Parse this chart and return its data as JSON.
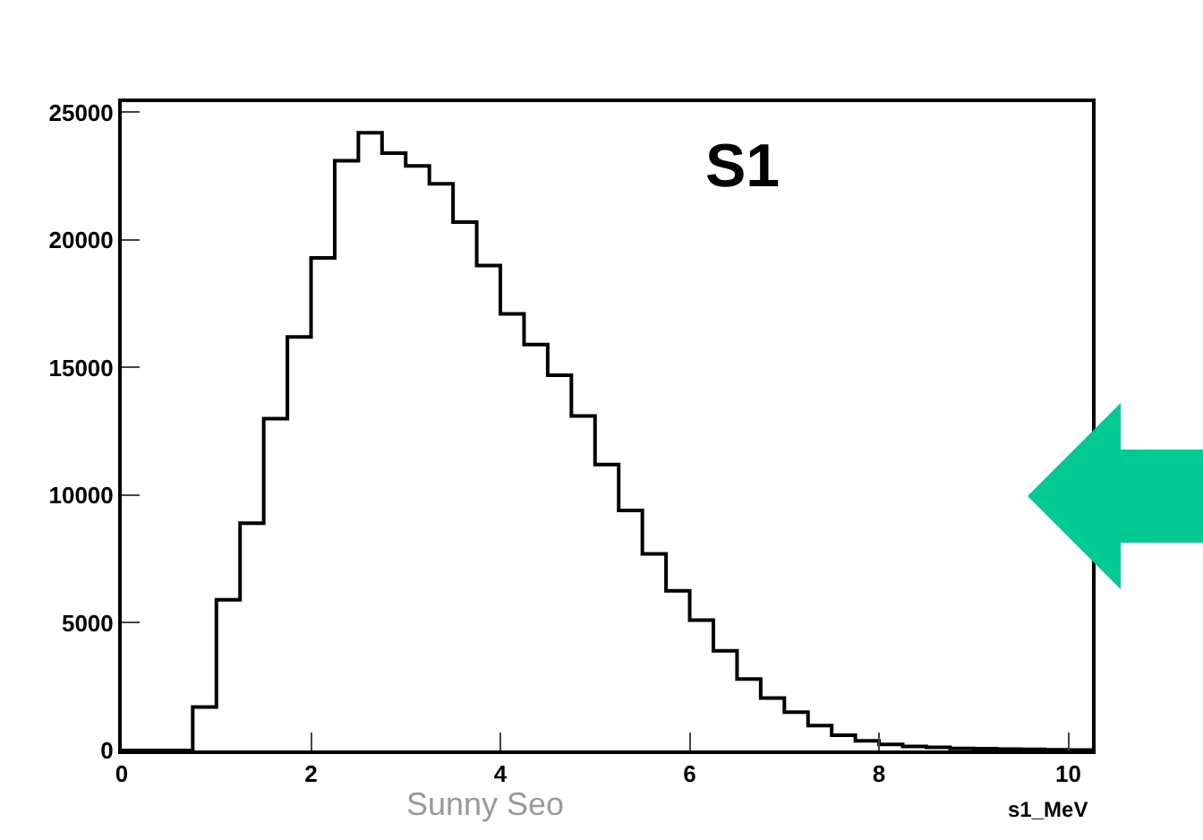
{
  "chart_data": {
    "type": "histogram",
    "xlabel": "s1_MeV",
    "annotations": [
      "S1",
      "Sunny Seo"
    ],
    "bins": [
      0,
      0.25,
      0.5,
      0.75,
      1,
      1.25,
      1.5,
      1.75,
      2,
      2.25,
      2.5,
      2.75,
      3,
      3.25,
      3.5,
      3.75,
      4,
      4.25,
      4.5,
      4.75,
      5,
      5.25,
      5.5,
      5.75,
      6,
      6.25,
      6.5,
      6.75,
      7,
      7.25,
      7.5,
      7.75,
      8,
      8.25,
      8.5,
      8.75,
      9,
      9.25,
      9.5,
      9.75,
      10,
      10.25
    ],
    "values": [
      0,
      0,
      0,
      1700,
      5900,
      8900,
      13000,
      16200,
      19300,
      23100,
      24200,
      23400,
      22900,
      22200,
      20700,
      19000,
      17100,
      15900,
      14700,
      13100,
      11200,
      9400,
      7700,
      6250,
      5100,
      3900,
      2800,
      2050,
      1500,
      970,
      600,
      380,
      240,
      160,
      120,
      80,
      70,
      50,
      40,
      30,
      20
    ],
    "color": "#000000",
    "xlim": [
      0,
      10.25
    ],
    "xticks": [
      0,
      2,
      4,
      6,
      8,
      10
    ],
    "ylim": [
      0,
      25400
    ],
    "yticks": [
      0,
      5000,
      10000,
      15000,
      20000,
      25000
    ],
    "grid": false
  }
}
